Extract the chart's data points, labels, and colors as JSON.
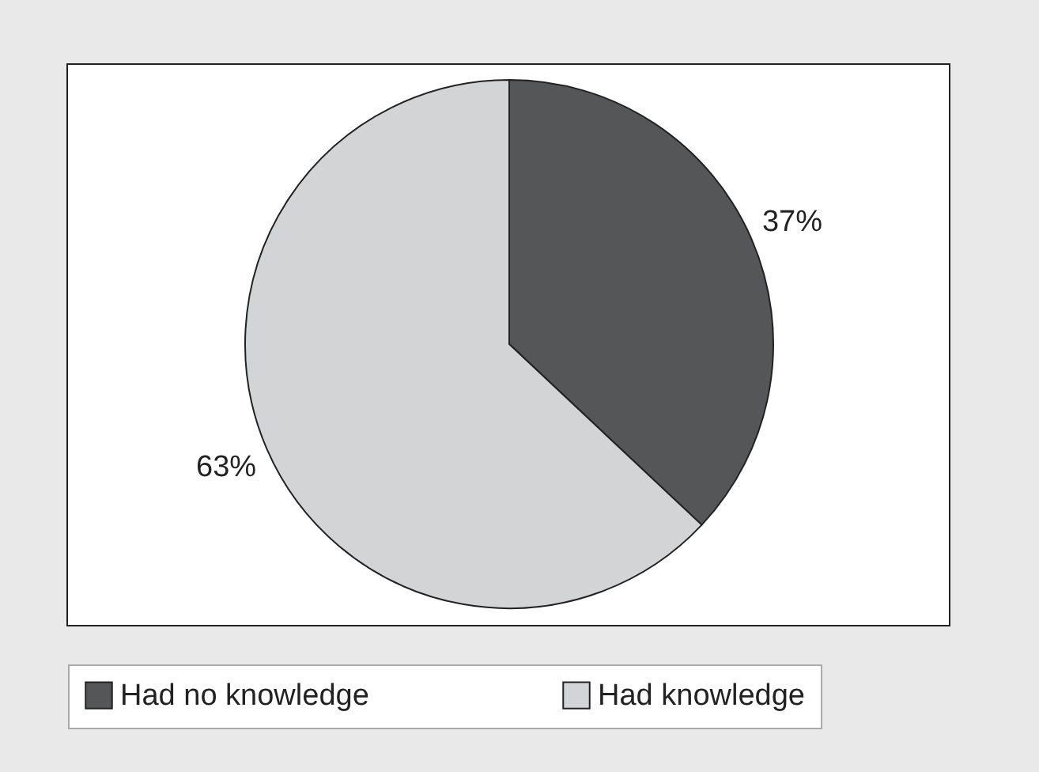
{
  "chart_data": {
    "type": "pie",
    "categories": [
      "Had no knowledge",
      "Had knowledge"
    ],
    "values": [
      37,
      63
    ],
    "colors": [
      "#555658",
      "#d3d4d6"
    ],
    "value_labels": [
      "37%",
      "63%"
    ],
    "legend": "bottom"
  }
}
